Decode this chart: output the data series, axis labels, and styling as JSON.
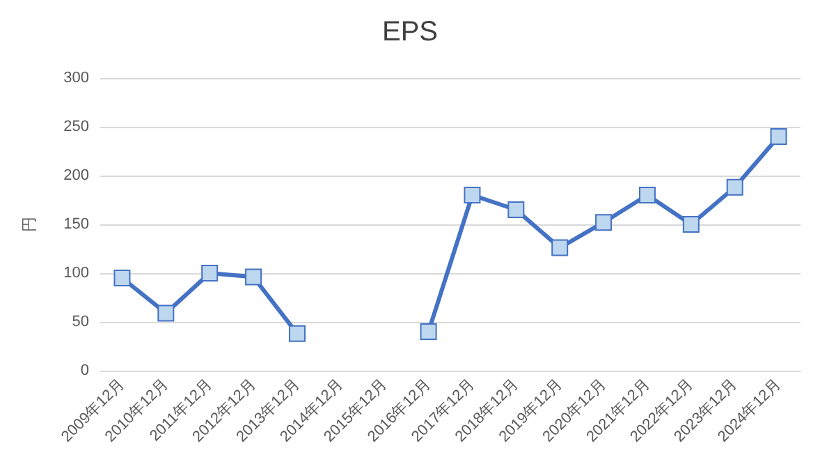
{
  "chart_data": {
    "type": "line",
    "title": "EPS",
    "ylabel": "円",
    "categories": [
      "2009年12月",
      "2010年12月",
      "2011年12月",
      "2012年12月",
      "2013年12月",
      "2014年12月",
      "2015年12月",
      "2016年12月",
      "2017年12月",
      "2018年12月",
      "2019年12月",
      "2020年12月",
      "2021年12月",
      "2022年12月",
      "2023年12月",
      "2024年12月"
    ],
    "series": [
      {
        "color": "#4472c4",
        "values": [
          95,
          59,
          100,
          96,
          38,
          null,
          null,
          40,
          180,
          165,
          126,
          152,
          180,
          150,
          188,
          240
        ]
      }
    ],
    "ylim": [
      0,
      300
    ],
    "yticks": [
      0,
      50,
      100,
      150,
      200,
      250,
      300
    ],
    "grid": "y",
    "marker": "square",
    "line_style": "solid"
  }
}
